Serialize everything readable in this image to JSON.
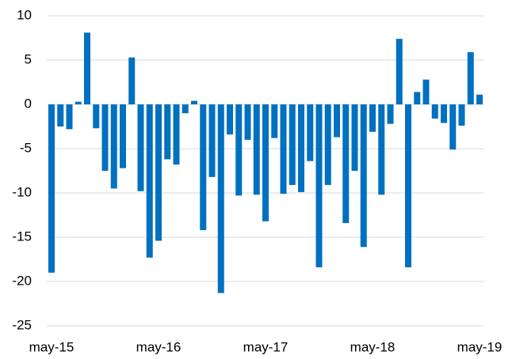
{
  "chart_data": {
    "type": "bar",
    "categories": [
      "may-15",
      null,
      null,
      null,
      null,
      null,
      null,
      null,
      null,
      null,
      null,
      null,
      "may-16",
      null,
      null,
      null,
      null,
      null,
      null,
      null,
      null,
      null,
      null,
      null,
      "may-17",
      null,
      null,
      null,
      null,
      null,
      null,
      null,
      null,
      null,
      null,
      null,
      "may-18",
      null,
      null,
      null,
      null,
      null,
      null,
      null,
      null,
      null,
      null,
      null,
      "may-19"
    ],
    "values": [
      -19,
      -2.5,
      -2.8,
      0.3,
      8.1,
      -2.7,
      -7.5,
      -9.5,
      -7.2,
      5.3,
      -9.8,
      -17.3,
      -15.4,
      -6.2,
      -6.8,
      -1.0,
      0.4,
      -14.2,
      -8.2,
      -21.3,
      -3.4,
      -10.3,
      -4.0,
      -10.2,
      -13.2,
      -3.8,
      -10.1,
      -9.1,
      -9.9,
      -6.4,
      -18.4,
      -9.1,
      -3.7,
      -13.4,
      -7.5,
      -16.1,
      -3.1,
      -10.2,
      -2.2,
      7.4,
      -18.4,
      1.4,
      2.8,
      -1.6,
      -2.1,
      -5.1,
      -2.4,
      5.9,
      1.1
    ],
    "color": "#0070c0",
    "ylim": [
      -25,
      10
    ],
    "yticks": [
      -25,
      -20,
      -15,
      -10,
      -5,
      0,
      5,
      10
    ],
    "grid": true
  }
}
